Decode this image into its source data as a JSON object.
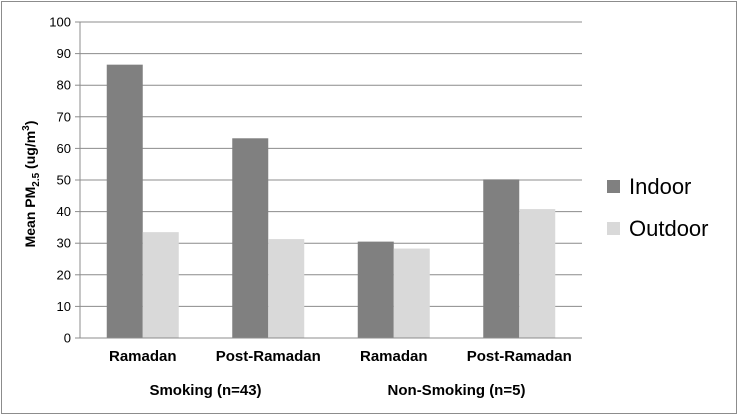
{
  "chart_data": {
    "type": "bar",
    "ylabel_main": "Mean PM",
    "ylabel_sub": "2.5",
    "ylabel_unit": " (ug/m",
    "ylabel_sup": "3",
    "ylabel_close": ")",
    "ylim": [
      0,
      100
    ],
    "yticks": [
      "0",
      "10",
      "20",
      "30",
      "40",
      "50",
      "60",
      "70",
      "80",
      "90",
      "100"
    ],
    "grid": true,
    "legend_position": "right",
    "categories": [
      "Ramadan",
      "Post-Ramadan",
      "Ramadan",
      "Post-Ramadan"
    ],
    "groups": [
      {
        "label": "Smoking (n=43)",
        "categories": [
          0,
          1
        ]
      },
      {
        "label": "Non-Smoking (n=5)",
        "categories": [
          2,
          3
        ]
      }
    ],
    "series": [
      {
        "name": "Indoor",
        "color": "#808080",
        "values": [
          86.5,
          63.2,
          30.5,
          50.2
        ]
      },
      {
        "name": "Outdoor",
        "color": "#d9d9d9",
        "values": [
          33.5,
          31.3,
          28.3,
          40.8
        ]
      }
    ]
  }
}
